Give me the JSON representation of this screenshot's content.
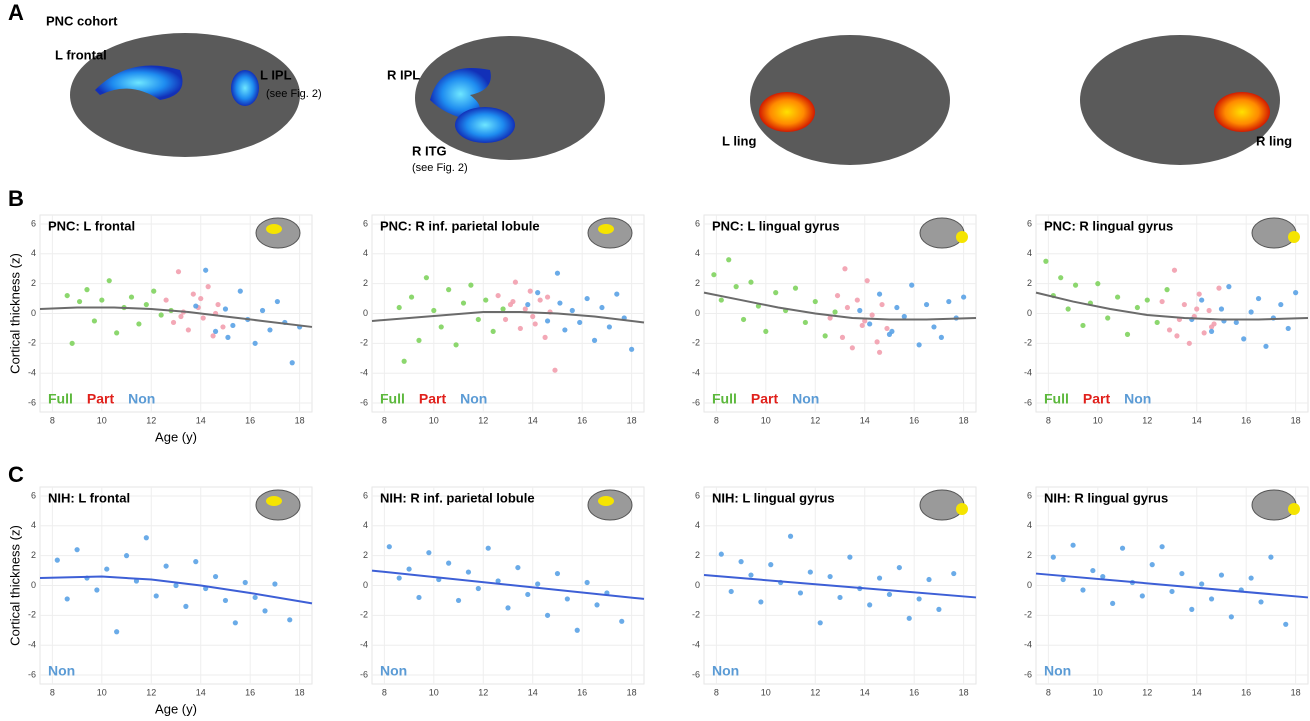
{
  "panel_labels": {
    "a": "A",
    "b": "B",
    "c": "C"
  },
  "panel_a": {
    "cohort": "PNC cohort",
    "l_frontal": "L frontal",
    "l_ipl": "L IPL",
    "l_ipl_note": "(see Fig. 2)",
    "r_ipl": "R IPL",
    "r_itg": "R ITG",
    "r_itg_note": "(see Fig. 2)",
    "l_ling": "L ling",
    "r_ling": "R ling"
  },
  "chart_data": [
    {
      "type": "scatter",
      "title": "PNC: L frontal",
      "ylabel": "Cortical thickness  (z)",
      "xlabel": "Age  (y)",
      "xlim": [
        7.5,
        18.5
      ],
      "ylim": [
        -6.6,
        6.6
      ],
      "xticks": [
        8,
        10,
        12,
        14,
        16,
        18
      ],
      "yticks": [
        -6,
        -4,
        -2,
        0,
        2,
        4,
        6
      ],
      "grid": true,
      "legend_position": "bottom-left",
      "series": [
        {
          "name": "Full",
          "color": "#7fd35e",
          "label_color": "#5cb83c",
          "x": [
            8.6,
            8.8,
            9.1,
            9.4,
            9.7,
            10.0,
            10.3,
            10.6,
            10.9,
            11.2,
            11.5,
            11.8,
            12.1,
            12.4,
            12.8
          ],
          "y": [
            1.2,
            -2.0,
            0.8,
            1.6,
            -0.5,
            0.9,
            2.2,
            -1.3,
            0.4,
            1.1,
            -0.7,
            0.6,
            1.5,
            -0.1,
            0.2
          ]
        },
        {
          "name": "Part",
          "color": "#f29fae",
          "label_color": "#e0201b",
          "x": [
            12.6,
            12.9,
            13.1,
            13.3,
            13.5,
            13.7,
            13.9,
            14.1,
            14.3,
            14.5,
            14.7,
            14.9,
            13.2,
            14.0,
            14.6
          ],
          "y": [
            0.9,
            -0.6,
            2.8,
            0.1,
            -1.1,
            1.3,
            0.4,
            -0.3,
            1.8,
            -1.5,
            0.6,
            -0.9,
            -0.2,
            1.0,
            0.0
          ]
        },
        {
          "name": "Non",
          "color": "#5aa2e6",
          "label_color": "#5b9bd5",
          "x": [
            13.8,
            14.2,
            14.6,
            15.0,
            15.3,
            15.6,
            15.9,
            16.2,
            16.5,
            16.8,
            17.1,
            17.4,
            17.7,
            18.0,
            15.1
          ],
          "y": [
            0.5,
            2.9,
            -1.2,
            0.3,
            -0.8,
            1.5,
            -0.4,
            -2.0,
            0.2,
            -1.1,
            0.8,
            -0.6,
            -3.3,
            -0.9,
            -1.6
          ]
        }
      ],
      "fit": {
        "color": "#6b6b6b",
        "x": [
          7.5,
          9,
          10.5,
          12,
          13.5,
          15,
          16.5,
          18.5
        ],
        "y": [
          0.3,
          0.4,
          0.4,
          0.3,
          0.1,
          -0.2,
          -0.5,
          -0.9
        ]
      }
    },
    {
      "type": "scatter",
      "title": "PNC: R inf. parietal  lobule",
      "xlim": [
        7.5,
        18.5
      ],
      "ylim": [
        -6.6,
        6.6
      ],
      "xticks": [
        8,
        10,
        12,
        14,
        16,
        18
      ],
      "yticks": [
        -6,
        -4,
        -2,
        0,
        2,
        4,
        6
      ],
      "grid": true,
      "legend_position": "bottom-left",
      "series": [
        {
          "name": "Full",
          "color": "#7fd35e",
          "label_color": "#5cb83c",
          "x": [
            8.6,
            8.8,
            9.1,
            9.4,
            9.7,
            10.0,
            10.3,
            10.6,
            10.9,
            11.2,
            11.5,
            11.8,
            12.1,
            12.4,
            12.8
          ],
          "y": [
            0.4,
            -3.2,
            1.1,
            -1.8,
            2.4,
            0.2,
            -0.9,
            1.6,
            -2.1,
            0.7,
            1.9,
            -0.4,
            0.9,
            -1.2,
            0.3
          ]
        },
        {
          "name": "Part",
          "color": "#f29fae",
          "label_color": "#e0201b",
          "x": [
            12.6,
            12.9,
            13.1,
            13.3,
            13.5,
            13.7,
            13.9,
            14.1,
            14.3,
            14.5,
            14.7,
            14.9,
            13.2,
            14.0,
            14.6
          ],
          "y": [
            1.2,
            -0.4,
            0.6,
            2.1,
            -1.0,
            0.3,
            1.5,
            -0.7,
            0.9,
            -1.6,
            0.1,
            -3.8,
            0.8,
            -0.2,
            1.1
          ]
        },
        {
          "name": "Non",
          "color": "#5aa2e6",
          "label_color": "#5b9bd5",
          "x": [
            13.8,
            14.2,
            14.6,
            15.0,
            15.3,
            15.6,
            15.9,
            16.2,
            16.5,
            16.8,
            17.1,
            17.4,
            17.7,
            18.0,
            15.1
          ],
          "y": [
            0.6,
            1.4,
            -0.5,
            2.7,
            -1.1,
            0.2,
            -0.6,
            1.0,
            -1.8,
            0.4,
            -0.9,
            1.3,
            -0.3,
            -2.4,
            0.7
          ]
        }
      ],
      "fit": {
        "color": "#6b6b6b",
        "x": [
          7.5,
          9,
          10.5,
          12,
          13.5,
          15,
          16.5,
          18.5
        ],
        "y": [
          -0.5,
          -0.3,
          -0.1,
          0.1,
          0.1,
          0.0,
          -0.2,
          -0.6
        ]
      }
    },
    {
      "type": "scatter",
      "title": "PNC: L lingual gyrus",
      "xlim": [
        7.5,
        18.5
      ],
      "ylim": [
        -6.6,
        6.6
      ],
      "xticks": [
        8,
        10,
        12,
        14,
        16,
        18
      ],
      "yticks": [
        -6,
        -4,
        -2,
        0,
        2,
        4,
        6
      ],
      "grid": true,
      "legend_position": "bottom-left",
      "series": [
        {
          "name": "Full",
          "color": "#7fd35e",
          "label_color": "#5cb83c",
          "x": [
            7.9,
            8.2,
            8.5,
            8.8,
            9.1,
            9.4,
            9.7,
            10.0,
            10.4,
            10.8,
            11.2,
            11.6,
            12.0,
            12.4,
            12.8
          ],
          "y": [
            2.6,
            0.9,
            3.6,
            1.8,
            -0.4,
            2.1,
            0.5,
            -1.2,
            1.4,
            0.2,
            1.7,
            -0.6,
            0.8,
            -1.5,
            0.1
          ]
        },
        {
          "name": "Part",
          "color": "#f29fae",
          "label_color": "#e0201b",
          "x": [
            12.6,
            12.9,
            13.1,
            13.3,
            13.5,
            13.7,
            13.9,
            14.1,
            14.3,
            14.5,
            14.7,
            14.9,
            13.2,
            14.0,
            14.6
          ],
          "y": [
            -0.3,
            1.2,
            -1.6,
            0.4,
            -2.3,
            0.9,
            -0.8,
            2.2,
            -0.1,
            -1.9,
            0.6,
            -1.0,
            3.0,
            -0.5,
            -2.6
          ]
        },
        {
          "name": "Non",
          "color": "#5aa2e6",
          "label_color": "#5b9bd5",
          "x": [
            13.8,
            14.2,
            14.6,
            15.0,
            15.3,
            15.6,
            15.9,
            16.2,
            16.5,
            16.8,
            17.1,
            17.4,
            17.7,
            18.0,
            15.1
          ],
          "y": [
            0.2,
            -0.7,
            1.3,
            -1.4,
            0.4,
            -0.2,
            1.9,
            -2.1,
            0.6,
            -0.9,
            -1.6,
            0.8,
            -0.3,
            1.1,
            -1.2
          ]
        }
      ],
      "fit": {
        "color": "#6b6b6b",
        "x": [
          7.5,
          9,
          10.5,
          12,
          13.5,
          15,
          16.5,
          18.5
        ],
        "y": [
          1.4,
          0.9,
          0.4,
          0.0,
          -0.3,
          -0.4,
          -0.4,
          -0.3
        ]
      }
    },
    {
      "type": "scatter",
      "title": "PNC: R lingual gyrus",
      "xlim": [
        7.5,
        18.5
      ],
      "ylim": [
        -6.6,
        6.6
      ],
      "xticks": [
        8,
        10,
        12,
        14,
        16,
        18
      ],
      "yticks": [
        -6,
        -4,
        -2,
        0,
        2,
        4,
        6
      ],
      "grid": true,
      "legend_position": "bottom-left",
      "series": [
        {
          "name": "Full",
          "color": "#7fd35e",
          "label_color": "#5cb83c",
          "x": [
            7.9,
            8.2,
            8.5,
            8.8,
            9.1,
            9.4,
            9.7,
            10.0,
            10.4,
            10.8,
            11.2,
            11.6,
            12.0,
            12.4,
            12.8
          ],
          "y": [
            3.5,
            1.2,
            2.4,
            0.3,
            1.9,
            -0.8,
            0.7,
            2.0,
            -0.3,
            1.1,
            -1.4,
            0.4,
            0.9,
            -0.6,
            1.6
          ]
        },
        {
          "name": "Part",
          "color": "#f29fae",
          "label_color": "#e0201b",
          "x": [
            12.6,
            12.9,
            13.1,
            13.3,
            13.5,
            13.7,
            13.9,
            14.1,
            14.3,
            14.5,
            14.7,
            14.9,
            13.2,
            14.0,
            14.6
          ],
          "y": [
            0.8,
            -1.1,
            2.9,
            -0.4,
            0.6,
            -2.0,
            -0.2,
            1.3,
            -1.3,
            0.2,
            -0.7,
            1.7,
            -1.5,
            0.3,
            -0.9
          ]
        },
        {
          "name": "Non",
          "color": "#5aa2e6",
          "label_color": "#5b9bd5",
          "x": [
            13.8,
            14.2,
            14.6,
            15.0,
            15.3,
            15.6,
            15.9,
            16.2,
            16.5,
            16.8,
            17.1,
            17.4,
            17.7,
            18.0,
            15.1
          ],
          "y": [
            -0.4,
            0.9,
            -1.2,
            0.3,
            1.8,
            -0.6,
            -1.7,
            0.1,
            1.0,
            -2.2,
            -0.3,
            0.6,
            -1.0,
            1.4,
            -0.5
          ]
        }
      ],
      "fit": {
        "color": "#6b6b6b",
        "x": [
          7.5,
          9,
          10.5,
          12,
          13.5,
          15,
          16.5,
          18.5
        ],
        "y": [
          1.4,
          0.8,
          0.3,
          -0.1,
          -0.3,
          -0.4,
          -0.4,
          -0.3
        ]
      }
    },
    {
      "type": "scatter",
      "title": "NIH: L frontal",
      "ylabel": "Cortical thickness  (z)",
      "xlabel": "Age  (y)",
      "xlim": [
        7.5,
        18.5
      ],
      "ylim": [
        -6.6,
        6.6
      ],
      "xticks": [
        8,
        10,
        12,
        14,
        16,
        18
      ],
      "yticks": [
        -6,
        -4,
        -2,
        0,
        2,
        4,
        6
      ],
      "grid": true,
      "legend_position": "bottom-left",
      "series": [
        {
          "name": "Non",
          "color": "#5aa2e6",
          "label_color": "#5b9bd5",
          "x": [
            8.2,
            8.6,
            9.0,
            9.4,
            9.8,
            10.2,
            10.6,
            11.0,
            11.4,
            11.8,
            12.2,
            12.6,
            13.0,
            13.4,
            13.8,
            14.2,
            14.6,
            15.0,
            15.4,
            15.8,
            16.2,
            16.6,
            17.0,
            17.6
          ],
          "y": [
            1.7,
            -0.9,
            2.4,
            0.5,
            -0.3,
            1.1,
            -3.1,
            2.0,
            0.3,
            3.2,
            -0.7,
            1.3,
            0.0,
            -1.4,
            1.6,
            -0.2,
            0.6,
            -1.0,
            -2.5,
            0.2,
            -0.8,
            -1.7,
            0.1,
            -2.3
          ]
        }
      ],
      "fit": {
        "color": "#3d5fd6",
        "x": [
          7.5,
          10,
          12,
          14,
          16,
          18.5
        ],
        "y": [
          0.5,
          0.6,
          0.4,
          0.0,
          -0.5,
          -1.2
        ]
      }
    },
    {
      "type": "scatter",
      "title": "NIH: R inf. parietal  lobule",
      "xlim": [
        7.5,
        18.5
      ],
      "ylim": [
        -6.6,
        6.6
      ],
      "xticks": [
        8,
        10,
        12,
        14,
        16,
        18
      ],
      "yticks": [
        -6,
        -4,
        -2,
        0,
        2,
        4,
        6
      ],
      "grid": true,
      "legend_position": "bottom-left",
      "series": [
        {
          "name": "Non",
          "color": "#5aa2e6",
          "label_color": "#5b9bd5",
          "x": [
            8.2,
            8.6,
            9.0,
            9.4,
            9.8,
            10.2,
            10.6,
            11.0,
            11.4,
            11.8,
            12.2,
            12.6,
            13.0,
            13.4,
            13.8,
            14.2,
            14.6,
            15.0,
            15.4,
            15.8,
            16.2,
            16.6,
            17.0,
            17.6
          ],
          "y": [
            2.6,
            0.5,
            1.1,
            -0.8,
            2.2,
            0.4,
            1.5,
            -1.0,
            0.9,
            -0.2,
            2.5,
            0.3,
            -1.5,
            1.2,
            -0.6,
            0.1,
            -2.0,
            0.8,
            -0.9,
            -3.0,
            0.2,
            -1.3,
            -0.5,
            -2.4
          ]
        }
      ],
      "fit": {
        "color": "#3d5fd6",
        "x": [
          7.5,
          18.5
        ],
        "y": [
          1.0,
          -0.9
        ]
      }
    },
    {
      "type": "scatter",
      "title": "NIH: L lingual gyrus",
      "xlim": [
        7.5,
        18.5
      ],
      "ylim": [
        -6.6,
        6.6
      ],
      "xticks": [
        8,
        10,
        12,
        14,
        16,
        18
      ],
      "yticks": [
        -6,
        -4,
        -2,
        0,
        2,
        4,
        6
      ],
      "grid": true,
      "legend_position": "bottom-left",
      "series": [
        {
          "name": "Non",
          "color": "#5aa2e6",
          "label_color": "#5b9bd5",
          "x": [
            8.2,
            8.6,
            9.0,
            9.4,
            9.8,
            10.2,
            10.6,
            11.0,
            11.4,
            11.8,
            12.2,
            12.6,
            13.0,
            13.4,
            13.8,
            14.2,
            14.6,
            15.0,
            15.4,
            15.8,
            16.2,
            16.6,
            17.0,
            17.6
          ],
          "y": [
            2.1,
            -0.4,
            1.6,
            0.7,
            -1.1,
            1.4,
            0.2,
            3.3,
            -0.5,
            0.9,
            -2.5,
            0.6,
            -0.8,
            1.9,
            -0.2,
            -1.3,
            0.5,
            -0.6,
            1.2,
            -2.2,
            -0.9,
            0.4,
            -1.6,
            0.8
          ]
        }
      ],
      "fit": {
        "color": "#3d5fd6",
        "x": [
          7.5,
          18.5
        ],
        "y": [
          0.7,
          -0.8
        ]
      }
    },
    {
      "type": "scatter",
      "title": "NIH: R lingual gyrus",
      "xlim": [
        7.5,
        18.5
      ],
      "ylim": [
        -6.6,
        6.6
      ],
      "xticks": [
        8,
        10,
        12,
        14,
        16,
        18
      ],
      "yticks": [
        -6,
        -4,
        -2,
        0,
        2,
        4,
        6
      ],
      "grid": true,
      "legend_position": "bottom-left",
      "series": [
        {
          "name": "Non",
          "color": "#5aa2e6",
          "label_color": "#5b9bd5",
          "x": [
            8.2,
            8.6,
            9.0,
            9.4,
            9.8,
            10.2,
            10.6,
            11.0,
            11.4,
            11.8,
            12.2,
            12.6,
            13.0,
            13.4,
            13.8,
            14.2,
            14.6,
            15.0,
            15.4,
            15.8,
            16.2,
            16.6,
            17.0,
            17.6
          ],
          "y": [
            1.9,
            0.4,
            2.7,
            -0.3,
            1.0,
            0.6,
            -1.2,
            2.5,
            0.2,
            -0.7,
            1.4,
            2.6,
            -0.4,
            0.8,
            -1.6,
            0.1,
            -0.9,
            0.7,
            -2.1,
            -0.3,
            0.5,
            -1.1,
            1.9,
            -2.6
          ]
        }
      ],
      "fit": {
        "color": "#3d5fd6",
        "x": [
          7.5,
          18.5
        ],
        "y": [
          0.8,
          -0.8
        ]
      }
    }
  ]
}
